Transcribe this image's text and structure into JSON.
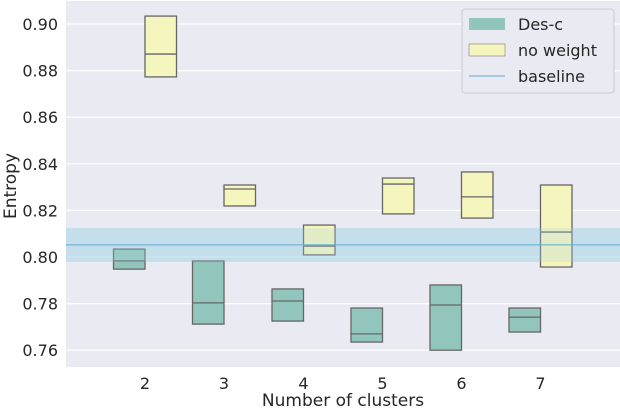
{
  "chart_data": {
    "type": "box",
    "title": "",
    "xlabel": "Number of clusters",
    "ylabel": "Entropy",
    "categories": [
      "2",
      "3",
      "4",
      "5",
      "6",
      "7"
    ],
    "ylim": [
      0.7535,
      0.9135
    ],
    "yticks": [
      "0.76",
      "0.78",
      "0.80",
      "0.82",
      "0.84",
      "0.86",
      "0.88",
      "0.90"
    ],
    "grid": true,
    "legend_position": "upper right",
    "series": [
      {
        "name": "Des-c",
        "color": "#92C6BC",
        "boxes": [
          {
            "q1": 0.7948,
            "median": 0.7983,
            "q3": 0.8034
          },
          {
            "q1": 0.7712,
            "median": 0.7803,
            "q3": 0.7983
          },
          {
            "q1": 0.7725,
            "median": 0.7811,
            "q3": 0.7863
          },
          {
            "q1": 0.7635,
            "median": 0.767,
            "q3": 0.7781
          },
          {
            "q1": 0.76,
            "median": 0.7794,
            "q3": 0.788
          },
          {
            "q1": 0.7678,
            "median": 0.7742,
            "q3": 0.7781
          }
        ]
      },
      {
        "name": "no weight",
        "color": "#F5F5BE",
        "boxes": [
          {
            "q1": 0.8773,
            "median": 0.8871,
            "q3": 0.9034
          },
          {
            "q1": 0.8219,
            "median": 0.8292,
            "q3": 0.8309
          },
          {
            "q1": 0.8009,
            "median": 0.8047,
            "q3": 0.8137
          },
          {
            "q1": 0.8185,
            "median": 0.8313,
            "q3": 0.8339
          },
          {
            "q1": 0.8167,
            "median": 0.8258,
            "q3": 0.8365
          },
          {
            "q1": 0.7957,
            "median": 0.8107,
            "q3": 0.8309
          }
        ]
      }
    ],
    "baseline": {
      "name": "baseline",
      "value": 0.8052,
      "band": [
        0.7979,
        0.8124
      ],
      "color": "#5AAFD6"
    }
  },
  "legend": {
    "items": [
      "Des-c",
      "no weight",
      "baseline"
    ]
  }
}
